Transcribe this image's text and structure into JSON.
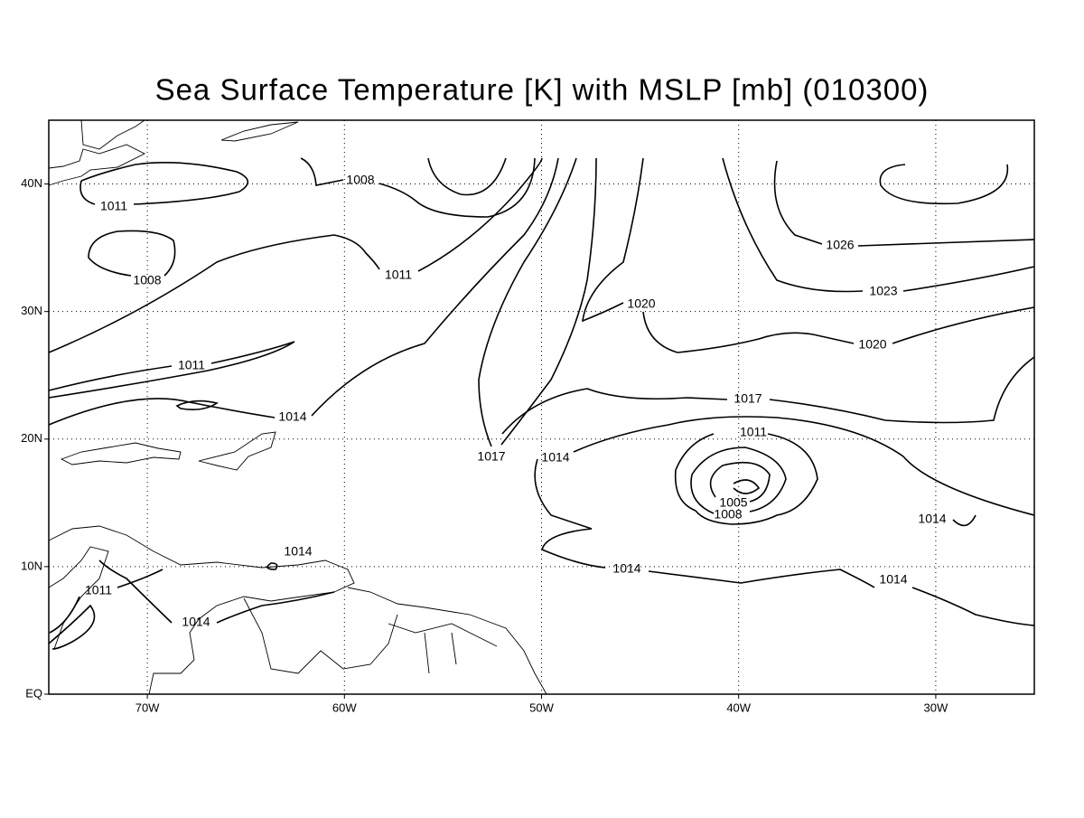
{
  "map": {
    "title": "Sea Surface Temperature [K] with MSLP [mb] (010300)",
    "xlim": [
      -75,
      -25
    ],
    "ylim": [
      0,
      45
    ],
    "xticks": [
      {
        "value": -70,
        "label": "70W"
      },
      {
        "value": -60,
        "label": "60W"
      },
      {
        "value": -50,
        "label": "50W"
      },
      {
        "value": -40,
        "label": "40W"
      },
      {
        "value": -30,
        "label": "30W"
      }
    ],
    "yticks": [
      {
        "value": 0,
        "label": "EQ"
      },
      {
        "value": 10,
        "label": "10N"
      },
      {
        "value": 20,
        "label": "20N"
      },
      {
        "value": 30,
        "label": "30N"
      },
      {
        "value": 40,
        "label": "40N"
      }
    ],
    "grid": true,
    "contour_labels": [
      "1011",
      "1008",
      "1008",
      "1011",
      "1026",
      "1023",
      "1020",
      "1020",
      "1011",
      "1017",
      "1014",
      "1011",
      "1017",
      "1014",
      "1005",
      "1008",
      "1014",
      "1014",
      "1014",
      "1014",
      "1011",
      "1014"
    ]
  }
}
